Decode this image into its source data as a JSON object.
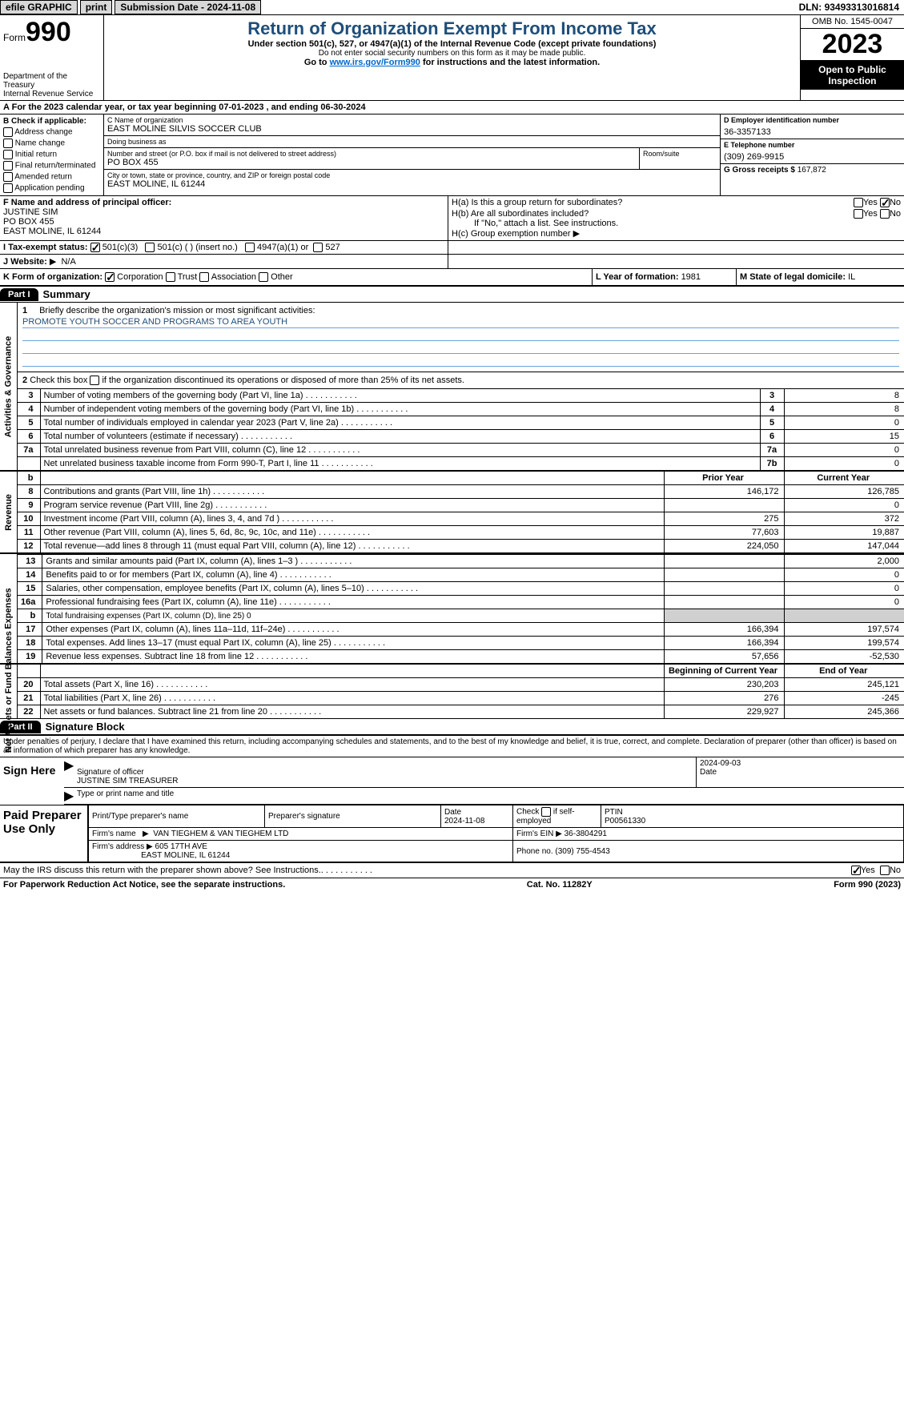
{
  "topbar": {
    "efile": "efile GRAPHIC",
    "print": "print",
    "submission_label": "Submission Date - ",
    "submission_date": "2024-11-08",
    "dln_label": "DLN: ",
    "dln": "93493313016814"
  },
  "header": {
    "form_label": "Form",
    "form_number": "990",
    "dept": "Department of the Treasury",
    "irs": "Internal Revenue Service",
    "title": "Return of Organization Exempt From Income Tax",
    "subtitle": "Under section 501(c), 527, or 4947(a)(1) of the Internal Revenue Code (except private foundations)",
    "note": "Do not enter social security numbers on this form as it may be made public.",
    "goto_pre": "Go to ",
    "goto_link": "www.irs.gov/Form990",
    "goto_post": " for instructions and the latest information.",
    "omb": "OMB No. 1545-0047",
    "year": "2023",
    "open": "Open to Public Inspection"
  },
  "section_a": {
    "text_pre": "For the 2023 calendar year, or tax year beginning ",
    "begin": "07-01-2023",
    "mid": "   , and ending ",
    "end": "06-30-2024"
  },
  "col_b": {
    "title": "B Check if applicable:",
    "items": [
      "Address change",
      "Name change",
      "Initial return",
      "Final return/terminated",
      "Amended return",
      "Application pending"
    ]
  },
  "col_c": {
    "name_label": "C Name of organization",
    "name": "EAST MOLINE SILVIS SOCCER CLUB",
    "dba_label": "Doing business as",
    "dba": "",
    "street_label": "Number and street (or P.O. box if mail is not delivered to street address)",
    "street": "PO BOX 455",
    "room_label": "Room/suite",
    "room": "",
    "city_label": "City or town, state or province, country, and ZIP or foreign postal code",
    "city": "EAST MOLINE, IL  61244"
  },
  "col_d": {
    "ein_label": "D Employer identification number",
    "ein": "36-3357133",
    "phone_label": "E Telephone number",
    "phone": "(309) 269-9915",
    "gross_label": "G Gross receipts $ ",
    "gross": "167,872"
  },
  "row_f": {
    "label": "F  Name and address of principal officer:",
    "name": "JUSTINE SIM",
    "street": "PO BOX 455",
    "city": "EAST MOLINE, IL  61244"
  },
  "row_h": {
    "ha_label": "H(a)  Is this a group return for subordinates?",
    "ha_yes": "Yes",
    "ha_no": "No",
    "hb_label": "H(b)  Are all subordinates included?",
    "hb_yes": "Yes",
    "hb_no": "No",
    "hb_note": "If \"No,\" attach a list. See instructions.",
    "hc_label": "H(c)  Group exemption number",
    "hc_arrow": "▶"
  },
  "row_i": {
    "label": "I   Tax-exempt status:",
    "opt1": "501(c)(3)",
    "opt2": "501(c) (  ) (insert no.)",
    "opt3": "4947(a)(1) or",
    "opt4": "527"
  },
  "row_j": {
    "label": "J   Website:",
    "arrow": "▶",
    "value": "N/A"
  },
  "row_k": {
    "label": "K Form of organization:",
    "opts": [
      "Corporation",
      "Trust",
      "Association",
      "Other"
    ],
    "l_label": "L Year of formation: ",
    "l_val": "1981",
    "m_label": "M State of legal domicile: ",
    "m_val": "IL"
  },
  "part1": {
    "header": "Part I",
    "title": "Summary"
  },
  "mission": {
    "num": "1",
    "label": "Briefly describe the organization's mission or most significant activities:",
    "text": "PROMOTE YOUTH SOCCER AND PROGRAMS TO AREA YOUTH"
  },
  "check2": {
    "num": "2",
    "text": "Check this box       if the organization discontinued its operations or disposed of more than 25% of its net assets."
  },
  "gov_rows": [
    {
      "n": "3",
      "d": "Number of voting members of the governing body (Part VI, line 1a)",
      "box": "3",
      "v": "8"
    },
    {
      "n": "4",
      "d": "Number of independent voting members of the governing body (Part VI, line 1b)",
      "box": "4",
      "v": "8"
    },
    {
      "n": "5",
      "d": "Total number of individuals employed in calendar year 2023 (Part V, line 2a)",
      "box": "5",
      "v": "0"
    },
    {
      "n": "6",
      "d": "Total number of volunteers (estimate if necessary)",
      "box": "6",
      "v": "15"
    },
    {
      "n": "7a",
      "d": "Total unrelated business revenue from Part VIII, column (C), line 12",
      "box": "7a",
      "v": "0"
    },
    {
      "n": "",
      "d": "Net unrelated business taxable income from Form 990-T, Part I, line 11",
      "box": "7b",
      "v": "0"
    }
  ],
  "rev_hdr": {
    "b": "b",
    "prior": "Prior Year",
    "current": "Current Year"
  },
  "revenue_rows": [
    {
      "n": "8",
      "d": "Contributions and grants (Part VIII, line 1h)",
      "p": "146,172",
      "c": "126,785"
    },
    {
      "n": "9",
      "d": "Program service revenue (Part VIII, line 2g)",
      "p": "",
      "c": "0"
    },
    {
      "n": "10",
      "d": "Investment income (Part VIII, column (A), lines 3, 4, and 7d )",
      "p": "275",
      "c": "372"
    },
    {
      "n": "11",
      "d": "Other revenue (Part VIII, column (A), lines 5, 6d, 8c, 9c, 10c, and 11e)",
      "p": "77,603",
      "c": "19,887"
    },
    {
      "n": "12",
      "d": "Total revenue—add lines 8 through 11 (must equal Part VIII, column (A), line 12)",
      "p": "224,050",
      "c": "147,044"
    }
  ],
  "expense_rows": [
    {
      "n": "13",
      "d": "Grants and similar amounts paid (Part IX, column (A), lines 1–3 )",
      "p": "",
      "c": "2,000"
    },
    {
      "n": "14",
      "d": "Benefits paid to or for members (Part IX, column (A), line 4)",
      "p": "",
      "c": "0"
    },
    {
      "n": "15",
      "d": "Salaries, other compensation, employee benefits (Part IX, column (A), lines 5–10)",
      "p": "",
      "c": "0"
    },
    {
      "n": "16a",
      "d": "Professional fundraising fees (Part IX, column (A), line 11e)",
      "p": "",
      "c": "0"
    },
    {
      "n": "b",
      "d": "Total fundraising expenses (Part IX, column (D), line 25) 0",
      "p": "shade",
      "c": "shade"
    },
    {
      "n": "17",
      "d": "Other expenses (Part IX, column (A), lines 11a–11d, 11f–24e)",
      "p": "166,394",
      "c": "197,574"
    },
    {
      "n": "18",
      "d": "Total expenses. Add lines 13–17 (must equal Part IX, column (A), line 25)",
      "p": "166,394",
      "c": "199,574"
    },
    {
      "n": "19",
      "d": "Revenue less expenses. Subtract line 18 from line 12",
      "p": "57,656",
      "c": "-52,530"
    }
  ],
  "net_hdr": {
    "begin": "Beginning of Current Year",
    "end": "End of Year"
  },
  "net_rows": [
    {
      "n": "20",
      "d": "Total assets (Part X, line 16)",
      "p": "230,203",
      "c": "245,121"
    },
    {
      "n": "21",
      "d": "Total liabilities (Part X, line 26)",
      "p": "276",
      "c": "-245"
    },
    {
      "n": "22",
      "d": "Net assets or fund balances. Subtract line 21 from line 20",
      "p": "229,927",
      "c": "245,366"
    }
  ],
  "side_labels": {
    "gov": "Activities & Governance",
    "rev": "Revenue",
    "exp": "Expenses",
    "net": "Net Assets or Fund Balances"
  },
  "part2": {
    "header": "Part II",
    "title": "Signature Block"
  },
  "declare": "Under penalties of perjury, I declare that I have examined this return, including accompanying schedules and statements, and to the best of my knowledge and belief, it is true, correct, and complete. Declaration of preparer (other than officer) is based on all information of which preparer has any knowledge.",
  "sign": {
    "here": "Sign Here",
    "date": "2024-09-03",
    "sig_label": "Signature of officer",
    "name_line": "JUSTINE SIM TREASURER",
    "date_label": "Date",
    "type_label": "Type or print name and title"
  },
  "prep": {
    "here": "Paid Preparer Use Only",
    "h_name": "Print/Type preparer's name",
    "h_sig": "Preparer's signature",
    "h_date": "Date",
    "date": "2024-11-08",
    "self": "Check        if self-employed",
    "ptin_label": "PTIN",
    "ptin": "P00561330",
    "firm_name_label": "Firm's name",
    "firm_name": "VAN TIEGHEM & VAN TIEGHEM LTD",
    "firm_ein_label": "Firm's EIN",
    "firm_ein": "36-3804291",
    "firm_addr_label": "Firm's address",
    "firm_addr1": "605 17TH AVE",
    "firm_addr2": "EAST MOLINE, IL  61244",
    "phone_label": "Phone no.",
    "phone": "(309) 755-4543"
  },
  "discuss": {
    "text": "May the IRS discuss this return with the preparer shown above? See Instructions.",
    "yes": "Yes",
    "no": "No"
  },
  "footer": {
    "left": "For Paperwork Reduction Act Notice, see the separate instructions.",
    "mid": "Cat. No. 11282Y",
    "right_pre": "Form ",
    "right_form": "990",
    "right_post": " (2023)"
  },
  "colors": {
    "heading": "#1f4e79",
    "link": "#0066cc",
    "shade": "#d0d0d0"
  }
}
